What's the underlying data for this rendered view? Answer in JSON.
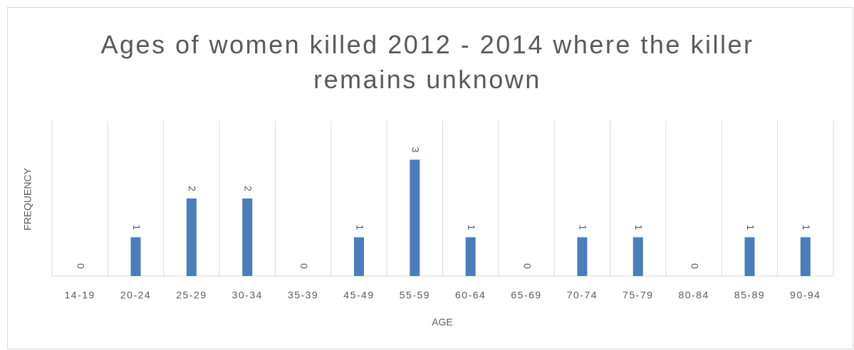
{
  "chart_data": {
    "type": "bar",
    "title": "Ages of women killed 2012 - 2014 where the killer remains unknown",
    "x_label": "AGE",
    "y_label": "FREQUENCY",
    "categories": [
      "14-19",
      "20-24",
      "25-29",
      "30-34",
      "35-39",
      "45-49",
      "55-59",
      "60-64",
      "65-69",
      "70-74",
      "75-79",
      "80-84",
      "85-89",
      "90-94"
    ],
    "values": [
      0,
      1,
      2,
      2,
      0,
      1,
      3,
      1,
      0,
      1,
      1,
      0,
      1,
      1
    ],
    "color": "#4a7ebb",
    "ylim": [
      0,
      4
    ]
  }
}
